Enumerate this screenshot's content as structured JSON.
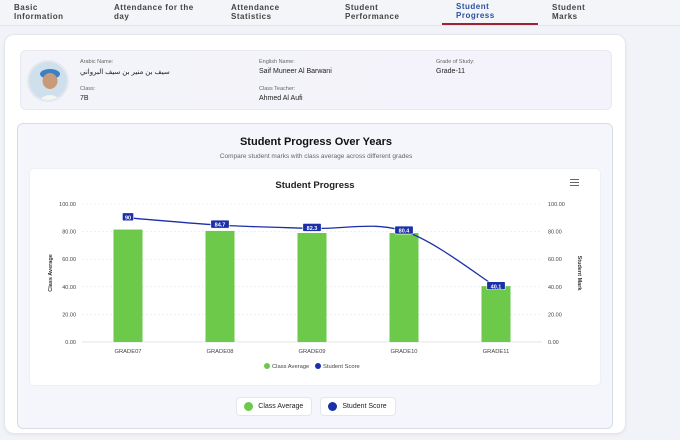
{
  "tabs": [
    {
      "label": "Basic Information",
      "name": "tab-basic-information",
      "active": false,
      "width": 100
    },
    {
      "label": "Attendance for the day",
      "name": "tab-attendance-day",
      "active": false,
      "width": 117
    },
    {
      "label": "Attendance Statistics",
      "name": "tab-attendance-statistics",
      "active": false,
      "width": 114
    },
    {
      "label": "Student Performance",
      "name": "tab-student-performance",
      "active": false,
      "width": 111
    },
    {
      "label": "Student Progress",
      "name": "tab-student-progress",
      "active": true,
      "width": 96
    },
    {
      "label": "Student Marks",
      "name": "tab-student-marks",
      "active": false,
      "width": 88
    }
  ],
  "student": {
    "arabic_name_label": "Arabic Name:",
    "arabic_name": "سيف بن منير بن سيف البرواني",
    "english_name_label": "English Name:",
    "english_name": "Saif Muneer Al Barwani",
    "grade_label": "Grade of Study:",
    "grade": "Grade-11",
    "class_label": "Class:",
    "class": "7B",
    "teacher_label": "Class Teacher:",
    "teacher": "Ahmed Al Aufi"
  },
  "progress": {
    "title": "Student Progress Over Years",
    "subtitle": "Compare student marks with class average across different grades"
  },
  "legend_buttons": {
    "class_average": "Class Average",
    "student_score": "Student Score"
  },
  "chart_data": {
    "type": "bar",
    "title": "Student Progress",
    "categories": [
      "GRADE07",
      "GRADE08",
      "GRADE09",
      "GRADE10",
      "GRADE11"
    ],
    "series": [
      {
        "name": "Class Average",
        "type": "bar",
        "color": "#6cc94a",
        "values": [
          81.5,
          80.5,
          79,
          79,
          40.5
        ]
      },
      {
        "name": "Student Score",
        "type": "line",
        "color": "#1a2fa8",
        "values": [
          90,
          84.7,
          82.3,
          80.4,
          40.1
        ]
      }
    ],
    "y_left": {
      "label": "Class Average",
      "min": 0,
      "max": 100,
      "ticks": [
        "0.00",
        "20.00",
        "40.00",
        "60.00",
        "80.00",
        "100.00"
      ]
    },
    "y_right": {
      "label": "Student Mark",
      "min": 0,
      "max": 100,
      "ticks": [
        "0.00",
        "20.00",
        "40.00",
        "60.00",
        "80.00",
        "100.00"
      ]
    },
    "data_labels": [
      "90",
      "84.7",
      "82.3",
      "80.4",
      "40.1"
    ],
    "legend_placement": "bottom",
    "grid": true
  }
}
